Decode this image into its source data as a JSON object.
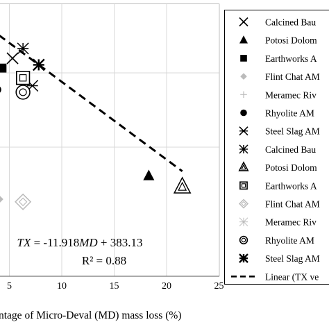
{
  "chart_data": {
    "type": "scatter",
    "title": "",
    "xlabel": "ntage of Micro-Deval (MD) mass loss (%)",
    "ylabel": "",
    "xlim": [
      0,
      25
    ],
    "xticks": [
      "5",
      "10",
      "15",
      "20",
      "25"
    ],
    "grid": true,
    "legend_position": "right",
    "series": [
      {
        "name": "Calcined Bau",
        "marker": "x",
        "color": "#000000",
        "x": [
          5.3
        ],
        "y": [
          300
        ]
      },
      {
        "name": "Potosi Dolom",
        "marker": "triangle-filled",
        "color": "#000000",
        "x": [
          18.3
        ],
        "y": [
          120
        ]
      },
      {
        "name": "Earthworks A",
        "marker": "square-filled",
        "color": "#000000",
        "x": [
          4.3
        ],
        "y": [
          285
        ]
      },
      {
        "name": "Flint Chat AM",
        "marker": "diamond-filled",
        "color": "#bbbbbb",
        "x": [
          4.0
        ],
        "y": [
          84
        ]
      },
      {
        "name": "Meramec Riv",
        "marker": "plus",
        "color": "#bbbbbb",
        "x": [],
        "y": []
      },
      {
        "name": "Rhyolite AM",
        "marker": "circle-filled",
        "color": "#000000",
        "x": [
          3.8
        ],
        "y": [
          252
        ]
      },
      {
        "name": "Steel Slag AM",
        "marker": "asterisk",
        "color": "#000000",
        "x": [
          7.2
        ],
        "y": [
          258
        ]
      },
      {
        "name": "Calcined Bau",
        "marker": "asterisk-thin",
        "color": "#000000",
        "x": [
          6.3
        ],
        "y": [
          315
        ]
      },
      {
        "name": "Potosi Dolom",
        "marker": "triangle-double",
        "color": "#000000",
        "x": [
          21.5
        ],
        "y": [
          103
        ]
      },
      {
        "name": "Earthworks A",
        "marker": "square-double",
        "color": "#000000",
        "x": [
          6.3
        ],
        "y": [
          270
        ]
      },
      {
        "name": "Flint Chat AM",
        "marker": "diamond-double",
        "color": "#bbbbbb",
        "x": [
          6.3
        ],
        "y": [
          80
        ]
      },
      {
        "name": "Meramec Riv",
        "marker": "asterisk-light",
        "color": "#bbbbbb",
        "x": [],
        "y": []
      },
      {
        "name": "Rhyolite AM",
        "marker": "circle-double",
        "color": "#000000",
        "x": [
          6.3
        ],
        "y": [
          248
        ]
      },
      {
        "name": "Steel Slag AM",
        "marker": "asterisk-bold",
        "color": "#000000",
        "x": [
          7.8
        ],
        "y": [
          290
        ]
      }
    ],
    "trendline": {
      "name": "Linear (TX ve",
      "style": "dashed",
      "slope": -11.918,
      "intercept": 383.13,
      "x_range": [
        4.0,
        21.5
      ]
    },
    "annotation": {
      "equation_parts": [
        "TX",
        " = -11.918",
        "MD",
        " + 383.13"
      ],
      "r2_label": "R² = 0.88"
    }
  }
}
